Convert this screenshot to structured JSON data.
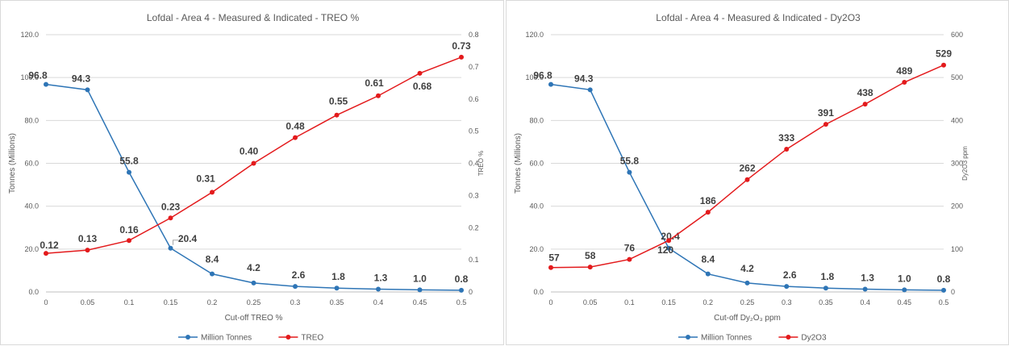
{
  "chart_data": [
    {
      "type": "line",
      "title": "Lofdal - Area 4 - Measured & Indicated - TREO %",
      "xlabel": "Cut-off TREO %",
      "ylabel": "Tonnes (Millions)",
      "y2label": "TREO %",
      "categories": [
        "0",
        "0.05",
        "0.1",
        "0.15",
        "0.2",
        "0.25",
        "0.3",
        "0.35",
        "0.4",
        "0.45",
        "0.5"
      ],
      "ylim": [
        0,
        120
      ],
      "y_ticks": [
        "0.0",
        "20.0",
        "40.0",
        "60.0",
        "80.0",
        "100.0",
        "120.0"
      ],
      "y2lim": [
        0,
        0.8
      ],
      "y2_ticks": [
        "0",
        "0.1",
        "0.2",
        "0.3",
        "0.4",
        "0.5",
        "0.6",
        "0.7",
        "0.8"
      ],
      "grid": true,
      "legend_position": "bottom",
      "series": [
        {
          "name": "Million Tonnes",
          "axis": "left",
          "color": "#2e75b6",
          "values": [
            96.8,
            94.3,
            55.8,
            20.4,
            8.4,
            4.2,
            2.6,
            1.8,
            1.3,
            1.0,
            0.8
          ],
          "labels": [
            "96.8",
            "94.3",
            "55.8",
            "20.4",
            "8.4",
            "4.2",
            "2.6",
            "1.8",
            "1.3",
            "1.0",
            "0.8"
          ]
        },
        {
          "name": "TREO",
          "axis": "right",
          "color": "#e31a1c",
          "values": [
            0.12,
            0.13,
            0.16,
            0.23,
            0.31,
            0.4,
            0.48,
            0.55,
            0.61,
            0.68,
            0.73
          ],
          "labels": [
            "0.12",
            "0.13",
            "0.16",
            "0.23",
            "0.31",
            "0.40",
            "0.48",
            "0.55",
            "0.61",
            "0.68",
            "0.73"
          ]
        }
      ]
    },
    {
      "type": "line",
      "title": "Lofdal - Area 4 - Measured & Indicated - Dy2O3",
      "xlabel": "Cut-off Dy₂O₃ ppm",
      "ylabel": "Tonnes (Millions)",
      "y2label": "Dy2O3 ppm",
      "categories": [
        "0",
        "0.05",
        "0.1",
        "0.15",
        "0.2",
        "0.25",
        "0.3",
        "0.35",
        "0.4",
        "0.45",
        "0.5"
      ],
      "ylim": [
        0,
        120
      ],
      "y_ticks": [
        "0.0",
        "20.0",
        "40.0",
        "60.0",
        "80.0",
        "100.0",
        "120.0"
      ],
      "y2lim": [
        0,
        600
      ],
      "y2_ticks": [
        "0",
        "100",
        "200",
        "300",
        "400",
        "500",
        "600"
      ],
      "grid": true,
      "legend_position": "bottom",
      "series": [
        {
          "name": "Million Tonnes",
          "axis": "left",
          "color": "#2e75b6",
          "values": [
            96.8,
            94.3,
            55.8,
            20.4,
            8.4,
            4.2,
            2.6,
            1.8,
            1.3,
            1.0,
            0.8
          ],
          "labels": [
            "96.8",
            "94.3",
            "55.8",
            "20.4",
            "8.4",
            "4.2",
            "2.6",
            "1.8",
            "1.3",
            "1.0",
            "0.8"
          ]
        },
        {
          "name": "Dy2O3",
          "axis": "right",
          "color": "#e31a1c",
          "values": [
            57,
            58,
            76,
            120,
            186,
            262,
            333,
            391,
            438,
            489,
            529
          ],
          "labels": [
            "57",
            "58",
            "76",
            "120",
            "186",
            "262",
            "333",
            "391",
            "438",
            "489",
            "529"
          ]
        }
      ]
    }
  ]
}
